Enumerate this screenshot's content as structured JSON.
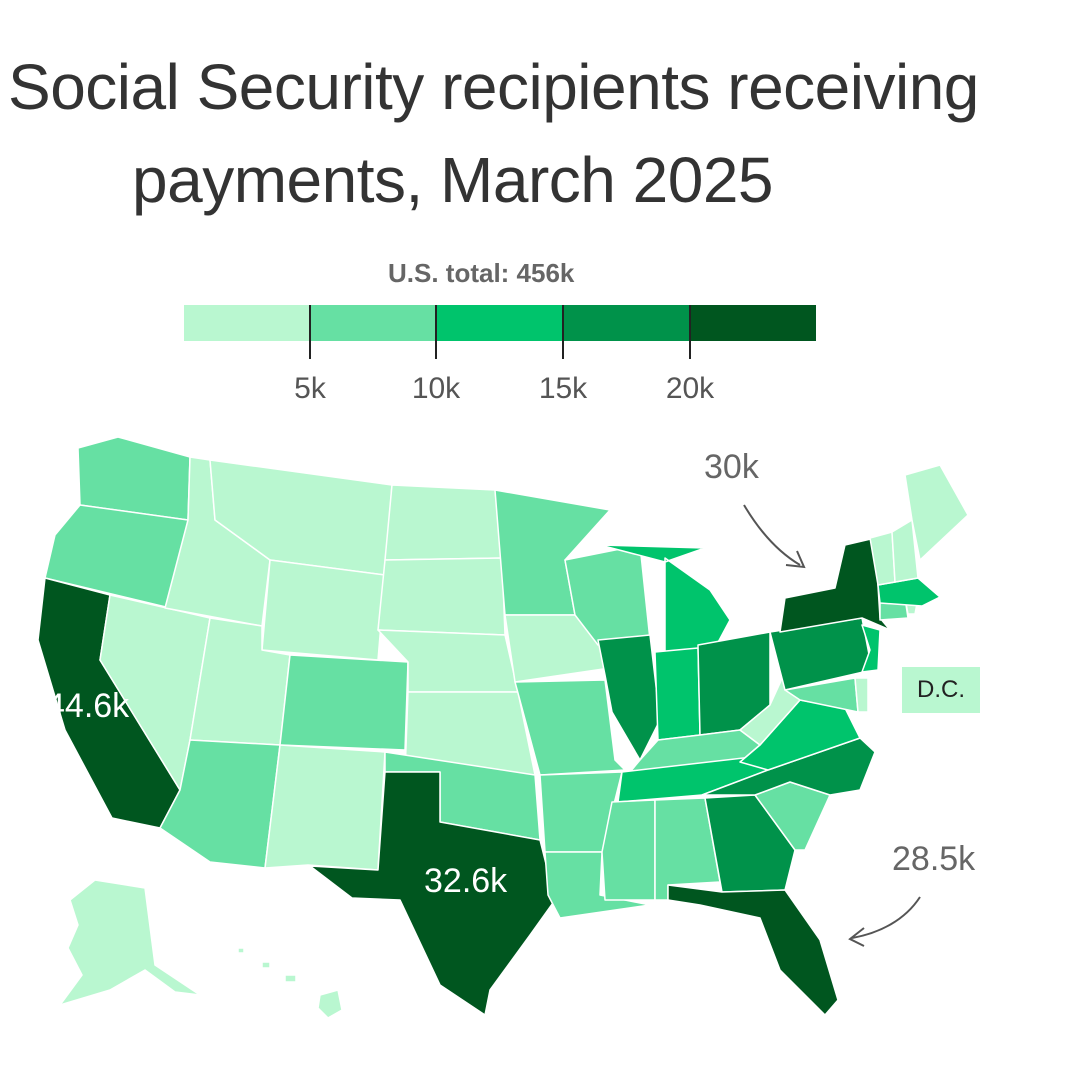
{
  "title_line1": "Social Security recipients receiving",
  "title_line2": "payments, March 2025",
  "total": "U.S. total: 456k",
  "legend": {
    "colors": [
      "#b9f7d0",
      "#66e0a3",
      "#00c46c",
      "#00924a",
      "#00561f"
    ],
    "ticks": [
      "5k",
      "10k",
      "15k",
      "20k"
    ]
  },
  "labels": {
    "california": "44.6k",
    "texas": "32.6k"
  },
  "annotations": {
    "new_york": "30k",
    "florida": "28.5k"
  },
  "dc": {
    "label": "D.C.",
    "color": "#b9f7d0"
  },
  "states": [
    {
      "name": "Washington",
      "color": "#66e0a3"
    },
    {
      "name": "Oregon",
      "color": "#66e0a3"
    },
    {
      "name": "California",
      "color": "#00561f"
    },
    {
      "name": "Nevada",
      "color": "#b9f7d0"
    },
    {
      "name": "Idaho",
      "color": "#b9f7d0"
    },
    {
      "name": "Montana",
      "color": "#b9f7d0"
    },
    {
      "name": "Wyoming",
      "color": "#b9f7d0"
    },
    {
      "name": "Utah",
      "color": "#b9f7d0"
    },
    {
      "name": "Arizona",
      "color": "#66e0a3"
    },
    {
      "name": "Colorado",
      "color": "#66e0a3"
    },
    {
      "name": "New Mexico",
      "color": "#b9f7d0"
    },
    {
      "name": "North Dakota",
      "color": "#b9f7d0"
    },
    {
      "name": "South Dakota",
      "color": "#b9f7d0"
    },
    {
      "name": "Nebraska",
      "color": "#b9f7d0"
    },
    {
      "name": "Kansas",
      "color": "#b9f7d0"
    },
    {
      "name": "Oklahoma",
      "color": "#66e0a3"
    },
    {
      "name": "Texas",
      "color": "#00561f"
    },
    {
      "name": "Minnesota",
      "color": "#66e0a3"
    },
    {
      "name": "Iowa",
      "color": "#b9f7d0"
    },
    {
      "name": "Missouri",
      "color": "#66e0a3"
    },
    {
      "name": "Arkansas",
      "color": "#66e0a3"
    },
    {
      "name": "Louisiana",
      "color": "#66e0a3"
    },
    {
      "name": "Wisconsin",
      "color": "#66e0a3"
    },
    {
      "name": "Illinois",
      "color": "#00924a"
    },
    {
      "name": "Michigan",
      "color": "#00c46c"
    },
    {
      "name": "Indiana",
      "color": "#00c46c"
    },
    {
      "name": "Ohio",
      "color": "#00924a"
    },
    {
      "name": "Kentucky",
      "color": "#66e0a3"
    },
    {
      "name": "Tennessee",
      "color": "#00c46c"
    },
    {
      "name": "Mississippi",
      "color": "#66e0a3"
    },
    {
      "name": "Alabama",
      "color": "#66e0a3"
    },
    {
      "name": "Georgia",
      "color": "#00924a"
    },
    {
      "name": "Florida",
      "color": "#00561f"
    },
    {
      "name": "South Carolina",
      "color": "#66e0a3"
    },
    {
      "name": "North Carolina",
      "color": "#00924a"
    },
    {
      "name": "Virginia",
      "color": "#00c46c"
    },
    {
      "name": "West Virginia",
      "color": "#b9f7d0"
    },
    {
      "name": "Pennsylvania",
      "color": "#00924a"
    },
    {
      "name": "New York",
      "color": "#00561f"
    },
    {
      "name": "New Jersey",
      "color": "#00c46c"
    },
    {
      "name": "Maryland",
      "color": "#66e0a3"
    },
    {
      "name": "Delaware",
      "color": "#b9f7d0"
    },
    {
      "name": "Connecticut",
      "color": "#66e0a3"
    },
    {
      "name": "Rhode Island",
      "color": "#b9f7d0"
    },
    {
      "name": "Massachusetts",
      "color": "#00c46c"
    },
    {
      "name": "Vermont",
      "color": "#b9f7d0"
    },
    {
      "name": "New Hampshire",
      "color": "#b9f7d0"
    },
    {
      "name": "Maine",
      "color": "#b9f7d0"
    },
    {
      "name": "Alaska",
      "color": "#b9f7d0"
    },
    {
      "name": "Hawaii",
      "color": "#b9f7d0"
    }
  ]
}
